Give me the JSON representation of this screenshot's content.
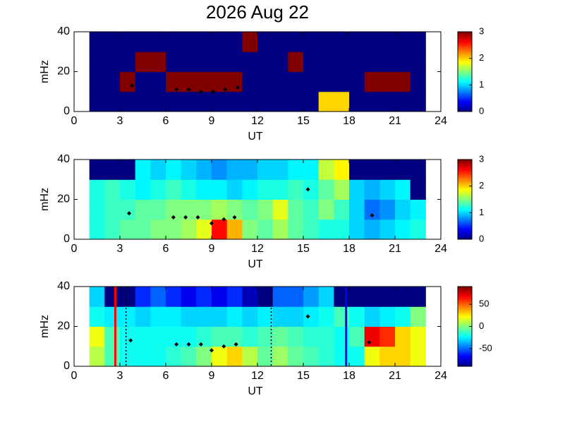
{
  "chart_data": [
    {
      "type": "heatmap",
      "title": "2026 Aug 22",
      "xlabel": "UT",
      "ylabel": "mHz",
      "xlim": [
        0,
        24
      ],
      "xticks": [
        0,
        3,
        6,
        9,
        12,
        15,
        18,
        21,
        24
      ],
      "ylim": [
        0,
        40
      ],
      "yticks": [
        0,
        20,
        40
      ],
      "clim": [
        0,
        3
      ],
      "cticks": [
        0,
        1,
        2,
        3
      ],
      "xbins": [
        1,
        2,
        3,
        4,
        5,
        6,
        7,
        8,
        9,
        10,
        11,
        12,
        13,
        14,
        15,
        16,
        17,
        18,
        19,
        20,
        21,
        22,
        23
      ],
      "ybins": [
        0,
        10,
        20,
        30,
        40
      ],
      "z": [
        [
          0,
          0,
          0,
          0,
          0,
          0,
          0,
          0,
          0,
          0,
          0,
          0,
          0,
          0,
          0,
          2,
          2,
          0,
          0,
          0,
          0,
          0
        ],
        [
          0,
          0,
          3,
          0,
          0,
          3,
          3,
          3,
          3,
          3,
          0,
          0,
          0,
          0,
          0,
          0,
          0,
          0,
          3,
          3,
          3,
          0
        ],
        [
          0,
          0,
          0,
          3,
          3,
          0,
          0,
          0,
          0,
          0,
          0,
          0,
          0,
          3,
          0,
          0,
          0,
          0,
          0,
          0,
          0,
          0
        ],
        [
          0,
          0,
          0,
          0,
          0,
          0,
          0,
          0,
          0,
          0,
          3,
          0,
          0,
          0,
          0,
          0,
          0,
          0,
          0,
          0,
          0,
          0
        ]
      ],
      "points": {
        "color": "#000000",
        "x": [
          3.8,
          6.7,
          7.5,
          8.3,
          9.1,
          9.9,
          10.7
        ],
        "y": [
          13,
          11,
          11,
          10,
          10,
          11,
          12
        ]
      }
    },
    {
      "type": "heatmap",
      "xlabel": "UT",
      "ylabel": "mHz",
      "xlim": [
        0,
        24
      ],
      "xticks": [
        0,
        3,
        6,
        9,
        12,
        15,
        18,
        21,
        24
      ],
      "ylim": [
        0,
        40
      ],
      "yticks": [
        0,
        20,
        40
      ],
      "clim": [
        0,
        3
      ],
      "cticks": [
        0,
        1,
        2,
        3
      ],
      "xbins": [
        1,
        2,
        3,
        4,
        5,
        6,
        7,
        8,
        9,
        10,
        11,
        12,
        13,
        14,
        15,
        16,
        17,
        18,
        19,
        20,
        21,
        22,
        23
      ],
      "ybins": [
        0,
        10,
        20,
        30,
        40
      ],
      "z": [
        [
          1.2,
          1.3,
          1.4,
          1.4,
          1.5,
          1.5,
          1.6,
          1.8,
          2.6,
          2.1,
          1.5,
          1.4,
          1.6,
          1.4,
          1.3,
          1.2,
          1.2,
          1.0,
          0.9,
          1.0,
          1.1,
          1.2
        ],
        [
          1.2,
          1.3,
          1.3,
          1.4,
          1.4,
          1.5,
          1.5,
          1.5,
          1.6,
          1.5,
          1.4,
          1.5,
          1.8,
          1.4,
          1.3,
          1.5,
          1.3,
          1.0,
          0.7,
          0.8,
          1.0,
          1.1
        ],
        [
          1.2,
          1.3,
          1.2,
          1.1,
          1.2,
          1.3,
          1.2,
          1.1,
          1.1,
          1.0,
          1.1,
          1.2,
          1.2,
          1.3,
          1.2,
          1.4,
          1.6,
          1.0,
          0.9,
          1.0,
          1.1,
          0
        ],
        [
          0,
          0,
          0,
          1.1,
          1.0,
          1.1,
          1.0,
          0.9,
          0.8,
          0.9,
          0.9,
          1.0,
          1.0,
          1.1,
          1.1,
          1.7,
          1.9,
          0,
          0,
          0,
          0,
          0
        ]
      ],
      "points": {
        "color": "#000000",
        "x": [
          3.6,
          6.5,
          7.3,
          8.1,
          9,
          9.8,
          10.5,
          15.3,
          19.5
        ],
        "y": [
          13,
          11,
          11,
          11,
          8,
          10,
          11,
          25,
          12
        ]
      }
    },
    {
      "type": "heatmap",
      "xlabel": "UT",
      "ylabel": "mHz",
      "xlim": [
        0,
        24
      ],
      "xticks": [
        0,
        3,
        6,
        9,
        12,
        15,
        18,
        21,
        24
      ],
      "ylim": [
        0,
        40
      ],
      "yticks": [
        0,
        20,
        40
      ],
      "clim": [
        -90,
        90
      ],
      "cticks": [
        -50,
        0,
        50
      ],
      "xbins": [
        1,
        2,
        3,
        4,
        5,
        6,
        7,
        8,
        9,
        10,
        11,
        12,
        13,
        14,
        15,
        16,
        17,
        18,
        19,
        20,
        21,
        22,
        23
      ],
      "ybins": [
        0,
        10,
        20,
        30,
        40
      ],
      "z": [
        [
          10,
          -10,
          -20,
          -20,
          -20,
          -15,
          -10,
          0,
          20,
          30,
          10,
          -5,
          5,
          -5,
          -10,
          -15,
          -20,
          -20,
          20,
          30,
          30,
          20
        ],
        [
          20,
          -10,
          -20,
          -20,
          -20,
          -20,
          -20,
          -15,
          -10,
          -10,
          -15,
          -10,
          -5,
          -10,
          -15,
          -15,
          -20,
          -10,
          70,
          60,
          30,
          20
        ],
        [
          -20,
          -25,
          -25,
          -30,
          -25,
          -25,
          -30,
          -30,
          -30,
          -25,
          -30,
          -25,
          -30,
          -30,
          -25,
          -20,
          -10,
          -20,
          -30,
          -25,
          -20,
          0
        ],
        [
          -30,
          -90,
          -90,
          -60,
          -50,
          -60,
          -70,
          -60,
          -70,
          -60,
          -80,
          -90,
          -50,
          -50,
          -40,
          -30,
          -90,
          -90,
          -90,
          -90,
          -90,
          -90
        ]
      ],
      "points": {
        "color": "#000000",
        "x": [
          3.7,
          6.7,
          7.5,
          8.3,
          9,
          9.8,
          10.6,
          15.3,
          19.3
        ],
        "y": [
          13,
          11,
          11,
          11,
          8,
          10,
          11,
          25,
          12
        ]
      },
      "vlines": [
        {
          "x": 2.7,
          "color": "#ff0000",
          "style": "solid"
        },
        {
          "x": 3.4,
          "color": "#000000",
          "style": "dotted"
        },
        {
          "x": 12.9,
          "color": "#000000",
          "style": "dotted"
        },
        {
          "x": 17.8,
          "color": "#0000ff",
          "style": "solid"
        }
      ]
    }
  ]
}
